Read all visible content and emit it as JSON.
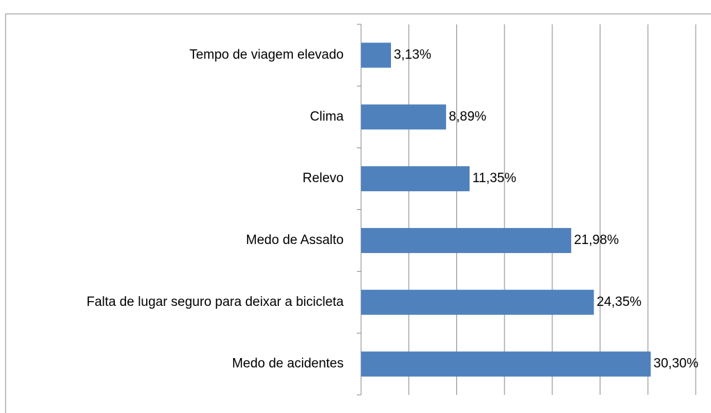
{
  "chart_data": {
    "type": "bar",
    "orientation": "horizontal",
    "categories": [
      "Tempo de viagem elevado",
      "Clima",
      "Relevo",
      "Medo de Assalto",
      "Falta de lugar seguro para deixar a bicicleta",
      "Medo de acidentes"
    ],
    "values": [
      3.13,
      8.89,
      11.35,
      21.98,
      24.35,
      30.3
    ],
    "value_labels": [
      "3,13%",
      "8,89%",
      "11,35%",
      "21,98%",
      "24,35%",
      "30,30%"
    ],
    "color": "#4f81bd",
    "xlim": [
      0,
      35
    ],
    "xticks": [
      0,
      5,
      10,
      15,
      20,
      25,
      30,
      35
    ],
    "grid": true
  }
}
